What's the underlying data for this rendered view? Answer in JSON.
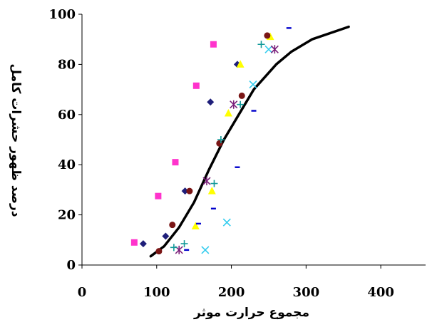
{
  "chart_data": {
    "type": "scatter",
    "xlabel": "مجموع حرارت موثر",
    "ylabel": "درصد ظهور حشرات کامل",
    "xlim": [
      0,
      460
    ],
    "ylim": [
      0,
      100
    ],
    "x_ticks": [
      "0",
      "100",
      "200",
      "300",
      "400"
    ],
    "y_ticks": [
      "0",
      "20",
      "40",
      "60",
      "80",
      "100"
    ],
    "grid": false,
    "legend": "none",
    "series": [
      {
        "marker": "diamond",
        "color": "#1f1f7a",
        "points": [
          [
            82,
            8.5
          ],
          [
            112,
            11.5
          ],
          [
            138,
            29.5
          ],
          [
            172,
            65
          ],
          [
            208,
            80
          ]
        ]
      },
      {
        "marker": "square",
        "color": "#ff33cc",
        "points": [
          [
            70,
            9
          ],
          [
            102,
            27.5
          ],
          [
            125,
            41
          ],
          [
            153,
            71.5
          ],
          [
            176,
            88
          ]
        ]
      },
      {
        "marker": "triangle",
        "color": "#ffff00",
        "points": [
          [
            152,
            15.5
          ],
          [
            174,
            29.5
          ],
          [
            196,
            60.5
          ],
          [
            212,
            80
          ],
          [
            252,
            91
          ]
        ]
      },
      {
        "marker": "x",
        "color": "#33ccee",
        "points": [
          [
            165,
            6
          ],
          [
            194,
            17
          ],
          [
            229,
            72
          ],
          [
            250,
            86
          ]
        ]
      },
      {
        "marker": "star",
        "color": "#7a1f7a",
        "points": [
          [
            130,
            6
          ],
          [
            167,
            33.5
          ],
          [
            203,
            64
          ],
          [
            258,
            86
          ]
        ]
      },
      {
        "marker": "circle",
        "color": "#7a1515",
        "points": [
          [
            103,
            5.5
          ],
          [
            121,
            16
          ],
          [
            144,
            29.5
          ],
          [
            184,
            48.5
          ],
          [
            214,
            67.5
          ],
          [
            248,
            91.5
          ]
        ]
      },
      {
        "marker": "plus",
        "color": "#119999",
        "points": [
          [
            123,
            7
          ],
          [
            137,
            8.5
          ],
          [
            177,
            32.5
          ],
          [
            186,
            50
          ],
          [
            212,
            64
          ],
          [
            240,
            88
          ]
        ]
      },
      {
        "marker": "dash",
        "color": "#0000cc",
        "points": [
          [
            140,
            6
          ],
          [
            156,
            16.5
          ],
          [
            176,
            22.5
          ],
          [
            208,
            39
          ],
          [
            230,
            61.5
          ],
          [
            277,
            94.5
          ]
        ]
      }
    ],
    "fit_line": {
      "color": "#000000",
      "points": [
        [
          92,
          3.5
        ],
        [
          110,
          7.5
        ],
        [
          130,
          15
        ],
        [
          150,
          25
        ],
        [
          170,
          38
        ],
        [
          190,
          50
        ],
        [
          210,
          60
        ],
        [
          230,
          70
        ],
        [
          260,
          80
        ],
        [
          280,
          85
        ],
        [
          308,
          90
        ],
        [
          357,
          95
        ]
      ]
    }
  }
}
